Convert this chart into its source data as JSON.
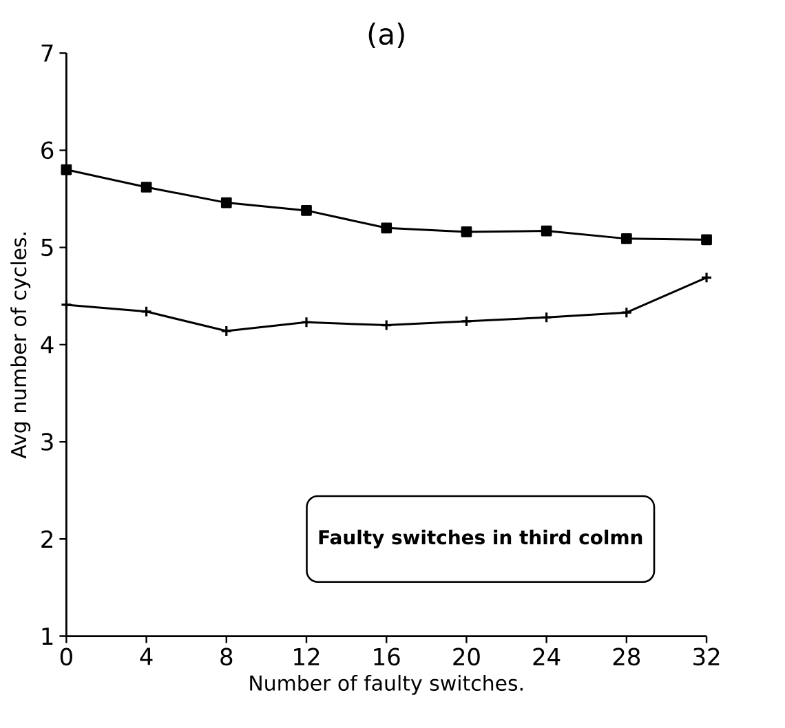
{
  "chart_data": {
    "type": "line",
    "title": "(a)",
    "xlabel": "Number of faulty switches.",
    "ylabel": "Avg number of cycles.",
    "x": [
      0,
      4,
      8,
      12,
      16,
      20,
      24,
      28,
      32
    ],
    "series": [
      {
        "color": "#000000",
        "marker": "square",
        "values": [
          5.8,
          5.62,
          5.46,
          5.38,
          5.2,
          5.16,
          5.17,
          5.09,
          5.08
        ]
      },
      {
        "color": "#000000",
        "marker": "cross",
        "values": [
          4.41,
          4.34,
          4.14,
          4.23,
          4.2,
          4.24,
          4.28,
          4.33,
          4.69
        ]
      }
    ],
    "xlim": [
      0,
      32
    ],
    "xticks": [
      0,
      4,
      8,
      12,
      16,
      20,
      24,
      28,
      32
    ],
    "ylim": [
      1,
      7
    ],
    "yticks": [
      1,
      2,
      3,
      4,
      5,
      6,
      7
    ],
    "annotations": [
      "Faulty switches in third colmn"
    ],
    "grid": false,
    "line_style": "solid"
  }
}
